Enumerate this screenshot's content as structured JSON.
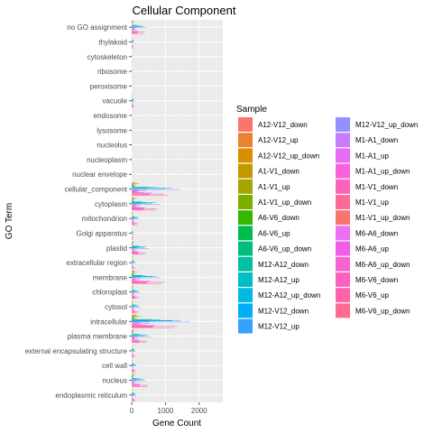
{
  "chart_data": {
    "type": "bar",
    "orientation": "horizontal",
    "position": "dodge",
    "title": "Cellular Component",
    "xlabel": "Gene Count",
    "ylabel": "GO Term",
    "xlim": [
      0,
      2700
    ],
    "x_ticks": [
      0,
      1000,
      2000
    ],
    "grid": true,
    "legend_position": "right",
    "legend_title": "Sample",
    "categories": [
      "no GO assignment",
      "thylakoid",
      "cytoskeleton",
      "ribosome",
      "peroxisome",
      "vacuole",
      "endosome",
      "lysosome",
      "nucleolus",
      "nucleoplasm",
      "nuclear envelope",
      "cellular_component",
      "cytoplasm",
      "mitochondrion",
      "Golgi apparatus",
      "plastid",
      "extracellular region",
      "membrane",
      "chloroplast",
      "cytosol",
      "intracellular",
      "plasma membrane",
      "external encapsulating structure",
      "cell wall",
      "nucleus",
      "endoplasmic reticulum"
    ],
    "series": [
      {
        "name": "A12-V12_down",
        "color": "#F8766D",
        "values": [
          35,
          8,
          2,
          2,
          1,
          10,
          2,
          1,
          2,
          2,
          1,
          120,
          80,
          25,
          8,
          40,
          15,
          90,
          25,
          25,
          150,
          50,
          12,
          15,
          50,
          15
        ]
      },
      {
        "name": "A12-V12_up",
        "color": "#EA8331",
        "values": [
          30,
          6,
          2,
          2,
          1,
          8,
          2,
          1,
          2,
          2,
          1,
          100,
          70,
          20,
          6,
          35,
          12,
          80,
          22,
          22,
          130,
          45,
          10,
          12,
          45,
          12
        ]
      },
      {
        "name": "A12-V12_up_down",
        "color": "#D89000",
        "values": [
          65,
          14,
          4,
          4,
          2,
          18,
          4,
          2,
          4,
          4,
          2,
          220,
          150,
          45,
          14,
          75,
          27,
          170,
          47,
          47,
          280,
          95,
          22,
          27,
          95,
          27
        ]
      },
      {
        "name": "A1-V1_down",
        "color": "#C09B00",
        "values": [
          20,
          5,
          1,
          1,
          1,
          6,
          1,
          1,
          1,
          1,
          1,
          70,
          45,
          12,
          4,
          22,
          8,
          55,
          15,
          15,
          90,
          30,
          7,
          8,
          30,
          8
        ]
      },
      {
        "name": "A1-V1_up",
        "color": "#A3A500",
        "values": [
          18,
          4,
          1,
          1,
          1,
          5,
          1,
          1,
          1,
          1,
          1,
          60,
          40,
          10,
          4,
          20,
          7,
          50,
          13,
          13,
          80,
          28,
          6,
          7,
          28,
          7
        ]
      },
      {
        "name": "A1-V1_up_down",
        "color": "#7CAE00",
        "values": [
          38,
          9,
          2,
          2,
          2,
          11,
          2,
          2,
          2,
          2,
          2,
          130,
          85,
          22,
          8,
          42,
          15,
          105,
          28,
          28,
          170,
          58,
          13,
          15,
          58,
          15
        ]
      },
      {
        "name": "A6-V6_down",
        "color": "#39B600",
        "values": [
          15,
          4,
          1,
          1,
          1,
          5,
          1,
          1,
          1,
          1,
          1,
          50,
          35,
          10,
          3,
          18,
          6,
          40,
          12,
          12,
          65,
          22,
          5,
          6,
          22,
          6
        ]
      },
      {
        "name": "A6-V6_up",
        "color": "#00BB4E",
        "values": [
          12,
          3,
          1,
          1,
          1,
          4,
          1,
          1,
          1,
          1,
          1,
          45,
          30,
          8,
          3,
          15,
          5,
          35,
          10,
          10,
          55,
          20,
          4,
          5,
          20,
          5
        ]
      },
      {
        "name": "A6-V6_up_down",
        "color": "#00BF7D",
        "values": [
          27,
          7,
          2,
          2,
          2,
          9,
          2,
          2,
          2,
          2,
          2,
          95,
          65,
          18,
          6,
          33,
          11,
          75,
          22,
          22,
          120,
          42,
          9,
          11,
          42,
          11
        ]
      },
      {
        "name": "M12-A12_down",
        "color": "#00C1A3",
        "values": [
          150,
          25,
          5,
          5,
          3,
          30,
          5,
          3,
          5,
          5,
          3,
          500,
          300,
          80,
          20,
          180,
          40,
          300,
          90,
          90,
          600,
          200,
          40,
          50,
          150,
          50
        ]
      },
      {
        "name": "M12-A12_up",
        "color": "#00BFC4",
        "values": [
          200,
          35,
          8,
          8,
          4,
          40,
          8,
          4,
          8,
          8,
          4,
          700,
          420,
          110,
          30,
          250,
          60,
          420,
          120,
          120,
          850,
          280,
          55,
          70,
          210,
          70
        ]
      },
      {
        "name": "M12-A12_up_down",
        "color": "#00BAE0",
        "values": [
          350,
          60,
          13,
          13,
          7,
          70,
          13,
          7,
          13,
          13,
          7,
          1200,
          720,
          190,
          50,
          430,
          100,
          720,
          210,
          210,
          1450,
          480,
          95,
          120,
          360,
          120
        ]
      },
      {
        "name": "M12-V12_down",
        "color": "#00B0F6",
        "values": [
          300,
          50,
          10,
          10,
          5,
          60,
          10,
          5,
          10,
          10,
          5,
          1000,
          600,
          160,
          40,
          360,
          80,
          600,
          180,
          180,
          1200,
          400,
          80,
          100,
          300,
          100
        ]
      },
      {
        "name": "M12-V12_up",
        "color": "#35A2FF",
        "values": [
          130,
          22,
          5,
          5,
          3,
          26,
          5,
          3,
          5,
          5,
          3,
          430,
          260,
          70,
          18,
          155,
          35,
          260,
          78,
          78,
          520,
          170,
          35,
          43,
          130,
          43
        ]
      },
      {
        "name": "M12-V12_up_down",
        "color": "#9590FF",
        "values": [
          430,
          72,
          15,
          15,
          8,
          86,
          15,
          8,
          15,
          15,
          8,
          1430,
          860,
          230,
          58,
          515,
          115,
          860,
          258,
          258,
          1720,
          570,
          115,
          143,
          430,
          143
        ]
      },
      {
        "name": "M1-A1_down",
        "color": "#C77CFF",
        "values": [
          60,
          10,
          2,
          2,
          1,
          12,
          2,
          1,
          2,
          2,
          1,
          200,
          120,
          32,
          8,
          72,
          16,
          120,
          36,
          36,
          240,
          80,
          16,
          20,
          60,
          20
        ]
      },
      {
        "name": "M1-A1_up",
        "color": "#E76BF3",
        "values": [
          70,
          12,
          3,
          3,
          2,
          14,
          3,
          2,
          3,
          3,
          2,
          230,
          140,
          37,
          9,
          83,
          18,
          140,
          42,
          42,
          280,
          92,
          18,
          23,
          70,
          23
        ]
      },
      {
        "name": "M1-A1_up_down",
        "color": "#FA62DB",
        "values": [
          130,
          22,
          5,
          5,
          3,
          26,
          5,
          3,
          5,
          5,
          3,
          430,
          260,
          69,
          17,
          155,
          34,
          260,
          78,
          78,
          520,
          172,
          34,
          43,
          130,
          43
        ]
      },
      {
        "name": "M1-V1_down",
        "color": "#FF62BC",
        "values": [
          50,
          9,
          2,
          2,
          1,
          10,
          2,
          1,
          2,
          2,
          1,
          170,
          100,
          27,
          7,
          61,
          13,
          100,
          30,
          30,
          200,
          68,
          13,
          17,
          51,
          17
        ]
      },
      {
        "name": "M1-V1_up",
        "color": "#FF6A98",
        "values": [
          55,
          10,
          2,
          2,
          1,
          11,
          2,
          1,
          2,
          2,
          1,
          180,
          110,
          29,
          7,
          65,
          14,
          110,
          33,
          33,
          220,
          73,
          14,
          18,
          55,
          18
        ]
      },
      {
        "name": "M1-V1_up_down",
        "color": "#F8766D",
        "values": [
          105,
          19,
          4,
          4,
          2,
          21,
          4,
          2,
          4,
          4,
          2,
          350,
          210,
          56,
          14,
          126,
          27,
          210,
          63,
          63,
          420,
          141,
          27,
          35,
          106,
          35
        ]
      },
      {
        "name": "M6-A6_down",
        "color": "#EA70F0",
        "values": [
          200,
          30,
          6,
          6,
          3,
          40,
          6,
          3,
          6,
          6,
          3,
          600,
          400,
          100,
          25,
          220,
          50,
          550,
          110,
          110,
          700,
          240,
          50,
          60,
          250,
          60
        ]
      },
      {
        "name": "M6-A6_up",
        "color": "#F15DE4",
        "values": [
          180,
          28,
          5,
          5,
          3,
          35,
          5,
          3,
          5,
          5,
          3,
          550,
          360,
          90,
          22,
          200,
          45,
          500,
          100,
          100,
          640,
          220,
          45,
          55,
          230,
          55
        ]
      },
      {
        "name": "M6-A6_up_down",
        "color": "#F862D3",
        "values": [
          380,
          58,
          11,
          11,
          6,
          75,
          11,
          6,
          11,
          11,
          6,
          950,
          760,
          190,
          47,
          420,
          95,
          1000,
          210,
          210,
          1340,
          460,
          95,
          115,
          480,
          115
        ]
      },
      {
        "name": "M6-V6_down",
        "color": "#FC60C0",
        "values": [
          180,
          28,
          5,
          5,
          3,
          35,
          5,
          3,
          5,
          5,
          3,
          550,
          360,
          90,
          22,
          200,
          45,
          450,
          100,
          100,
          640,
          220,
          45,
          55,
          230,
          55
        ]
      },
      {
        "name": "M6-V6_up",
        "color": "#FE63AB",
        "values": [
          170,
          26,
          5,
          5,
          3,
          33,
          5,
          3,
          5,
          5,
          3,
          520,
          340,
          85,
          21,
          190,
          43,
          430,
          95,
          95,
          610,
          210,
          43,
          52,
          220,
          52
        ]
      },
      {
        "name": "M6-V6_up_down",
        "color": "#FF6B93",
        "values": [
          350,
          54,
          10,
          10,
          6,
          68,
          10,
          6,
          10,
          10,
          6,
          1070,
          700,
          175,
          43,
          390,
          88,
          880,
          195,
          195,
          1250,
          430,
          88,
          107,
          450,
          107
        ]
      }
    ]
  }
}
